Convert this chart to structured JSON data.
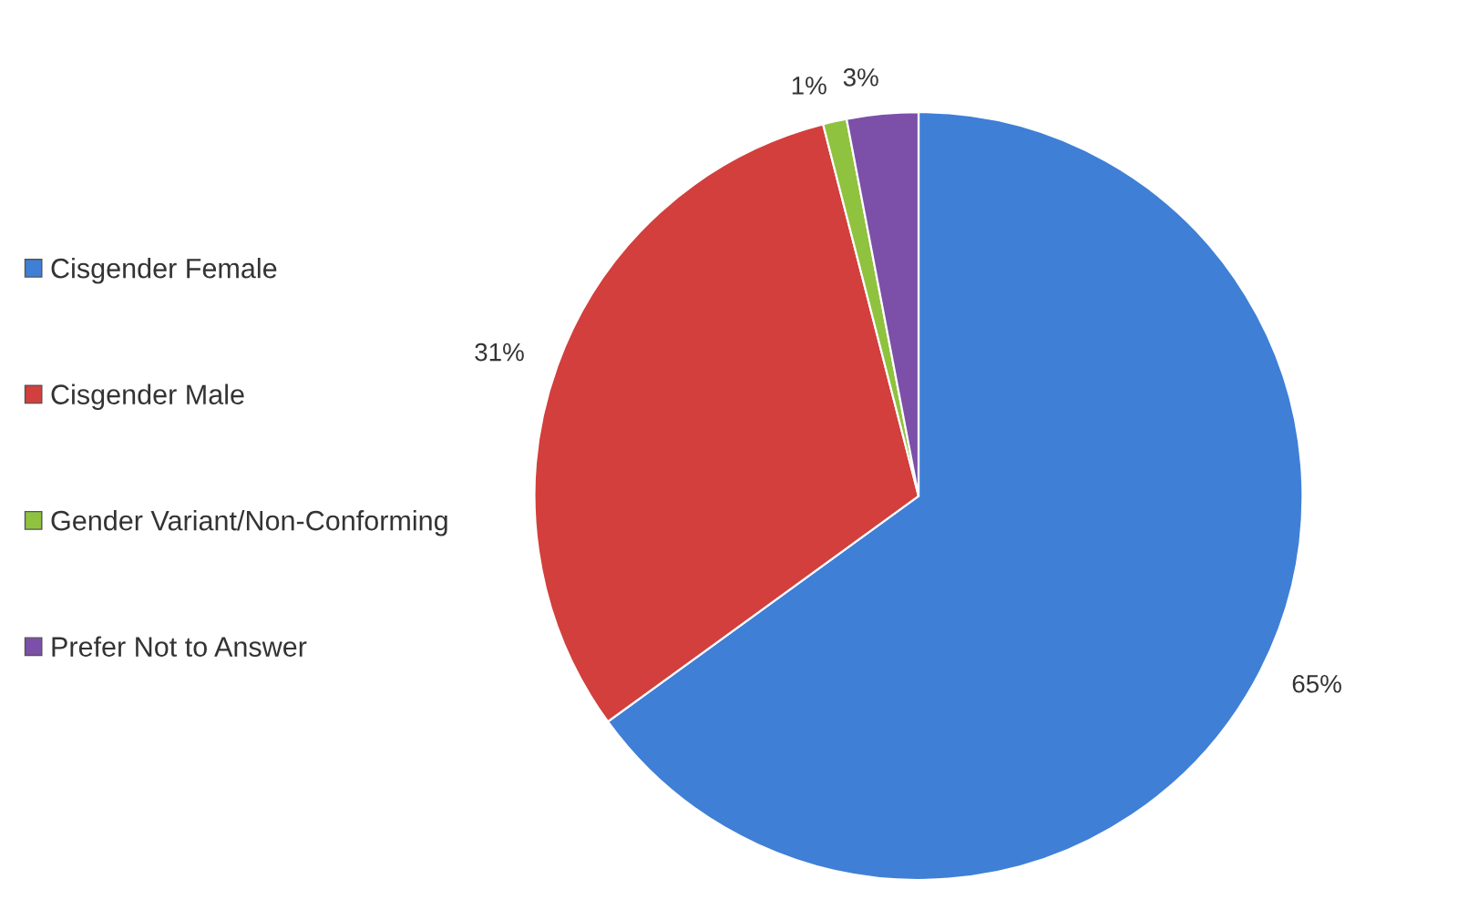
{
  "chart_data": {
    "type": "pie",
    "categories": [
      "Cisgender Female",
      "Cisgender Male",
      "Gender Variant/Non-Conforming",
      "Prefer Not to Answer"
    ],
    "values": [
      65,
      31,
      1,
      3
    ],
    "value_labels": [
      "65%",
      "31%",
      "1%",
      "3%"
    ],
    "colors": [
      "#3f7fd6",
      "#d23f3c",
      "#8fc23f",
      "#7c4fa8"
    ],
    "legend": "left"
  }
}
